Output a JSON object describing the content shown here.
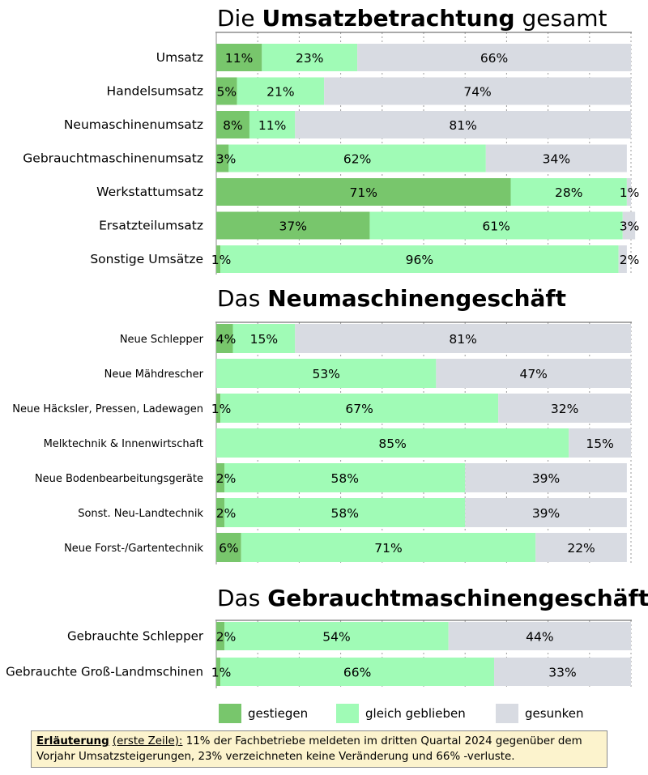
{
  "colors": {
    "increased": "#78c66c",
    "same": "#a0fbb6",
    "decreased": "#d8dbe2",
    "grid": "#9a9a9a"
  },
  "sections": [
    {
      "title_plain_1": "Die ",
      "title_bold": "Umsatzbetrachtung",
      "title_plain_2": " gesamt"
    },
    {
      "title_plain_1": "Das ",
      "title_bold": "Neumaschinengeschäft",
      "title_plain_2": ""
    },
    {
      "title_plain_1": "Das ",
      "title_bold": "Gebrauchtmaschinengeschäft",
      "title_plain_2": ""
    }
  ],
  "chart_data": [
    {
      "type": "bar",
      "orientation": "horizontal-stacked-100",
      "title": "Die Umsatzbetrachtung gesamt",
      "series": [
        {
          "name": "gestiegen",
          "values": [
            11,
            5,
            8,
            3,
            71,
            37,
            1
          ]
        },
        {
          "name": "gleich geblieben",
          "values": [
            23,
            21,
            11,
            62,
            28,
            61,
            96
          ]
        },
        {
          "name": "gesunken",
          "values": [
            66,
            74,
            81,
            34,
            1,
            3,
            2
          ]
        }
      ],
      "categories": [
        "Umsatz",
        "Handelsumsatz",
        "Neumaschinenumsatz",
        "Gebrauchtmaschinenumsatz",
        "Werkstattumsatz",
        "Ersatzteilumsatz",
        "Sonstige Umsätze"
      ],
      "labels": [
        [
          "11%",
          "23%",
          "66%"
        ],
        [
          "5%",
          "21%",
          "74%"
        ],
        [
          "8%",
          "11%",
          "81%"
        ],
        [
          "3%",
          "62%",
          "34%"
        ],
        [
          "71%",
          "28%",
          "1%"
        ],
        [
          "37%",
          "61%",
          "3%"
        ],
        [
          "1%",
          "96%",
          "2%"
        ]
      ],
      "xlim": [
        0,
        100
      ]
    },
    {
      "type": "bar",
      "orientation": "horizontal-stacked-100",
      "title": "Das Neumaschinengeschäft",
      "series": [
        {
          "name": "gestiegen",
          "values": [
            4,
            0,
            1,
            0,
            2,
            2,
            6
          ]
        },
        {
          "name": "gleich geblieben",
          "values": [
            15,
            53,
            67,
            85,
            58,
            58,
            71
          ]
        },
        {
          "name": "gesunken",
          "values": [
            81,
            47,
            32,
            15,
            39,
            39,
            22
          ]
        }
      ],
      "categories": [
        "Neue Schlepper",
        "Neue Mähdrescher",
        "Neue Häcksler, Pressen, Ladewagen",
        "Melktechnik & Innenwirtschaft",
        "Neue Bodenbearbeitungsgeräte",
        "Sonst. Neu-Landtechnik",
        "Neue Forst-/Gartentechnik"
      ],
      "labels": [
        [
          "4%",
          "15%",
          "81%"
        ],
        [
          "",
          "53%",
          "47%"
        ],
        [
          "1%",
          "67%",
          "32%"
        ],
        [
          "",
          "85%",
          "15%"
        ],
        [
          "2%",
          "58%",
          "39%"
        ],
        [
          "2%",
          "58%",
          "39%"
        ],
        [
          "6%",
          "71%",
          "22%"
        ]
      ],
      "xlim": [
        0,
        100
      ]
    },
    {
      "type": "bar",
      "orientation": "horizontal-stacked-100",
      "title": "Das Gebrauchtmaschinengeschäft",
      "series": [
        {
          "name": "gestiegen",
          "values": [
            2,
            1
          ]
        },
        {
          "name": "gleich geblieben",
          "values": [
            54,
            66
          ]
        },
        {
          "name": "gesunken",
          "values": [
            44,
            33
          ]
        }
      ],
      "categories": [
        "Gebrauchte Schlepper",
        "Gebrauchte Groß-Landmschinen"
      ],
      "labels": [
        [
          "2%",
          "54%",
          "44%"
        ],
        [
          "1%",
          "66%",
          "33%"
        ]
      ],
      "xlim": [
        0,
        100
      ]
    }
  ],
  "legend": {
    "increased": "gestiegen",
    "same": "gleich geblieben",
    "decreased": "gesunken"
  },
  "note": {
    "heading": "Erläuterung",
    "paren": "(erste Zeile):",
    "text": " 11% der Fachbetriebe meldeten im dritten Quartal 2024 gegenüber dem Vorjahr Umsatzsteigerungen, 23% verzeichneten keine Veränderung und 66% -verluste."
  }
}
